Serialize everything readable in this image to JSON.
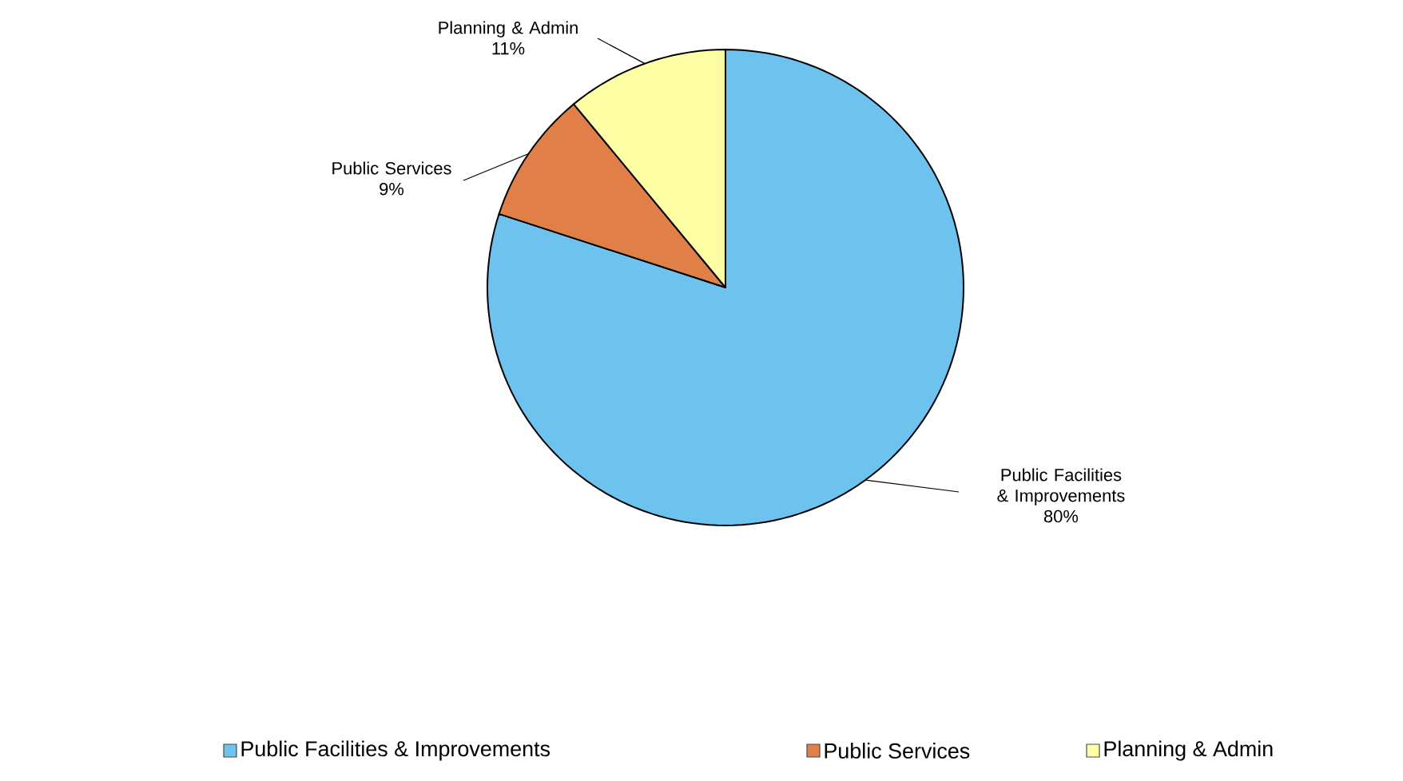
{
  "chart_data": {
    "type": "pie",
    "categories": [
      "Public Facilities & Improvements",
      "Public Services",
      "Planning & Admin"
    ],
    "values": [
      80,
      9,
      11
    ],
    "value_labels": [
      "80%",
      "9%",
      "11%"
    ],
    "colors": [
      "#6ec3ee",
      "#e07f48",
      "#ffffa6"
    ],
    "legend": "bottom"
  }
}
